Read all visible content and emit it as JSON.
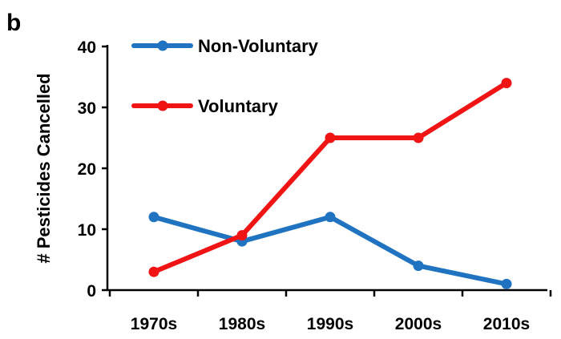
{
  "panel_label": "b",
  "chart_data": {
    "type": "line",
    "title": "",
    "xlabel": "",
    "ylabel": "# Pesticides Cancelled",
    "categories": [
      "1970s",
      "1980s",
      "1990s",
      "2000s",
      "2010s"
    ],
    "ylim": [
      0,
      40
    ],
    "yticks": [
      0,
      10,
      20,
      30,
      40
    ],
    "grid": false,
    "legend_position": "top-left",
    "series": [
      {
        "name": "Non-Voluntary",
        "color": "#1f73c1",
        "values": [
          12,
          8,
          12,
          4,
          1
        ]
      },
      {
        "name": "Voluntary",
        "color": "#f01414",
        "values": [
          3,
          9,
          25,
          25,
          34
        ]
      }
    ]
  }
}
